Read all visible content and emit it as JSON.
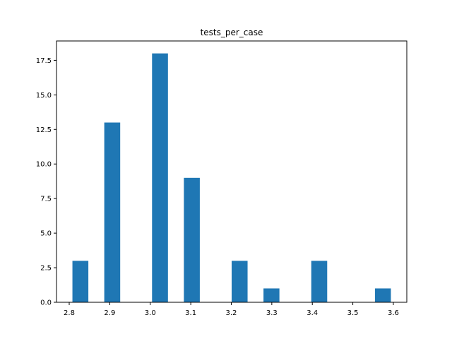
{
  "chart_data": {
    "type": "bar",
    "title": "tests_per_case",
    "xlabel": "",
    "ylabel": "",
    "bar_color": "#1f77b4",
    "xlim": [
      2.7686,
      3.6332
    ],
    "ylim": [
      0,
      18.9
    ],
    "x_ticks": [
      2.8,
      2.9,
      3.0,
      3.1,
      3.2,
      3.3,
      3.4,
      3.5,
      3.6
    ],
    "x_tick_labels": [
      "2.8",
      "2.9",
      "3.0",
      "3.1",
      "3.2",
      "3.3",
      "3.4",
      "3.5",
      "3.6"
    ],
    "y_ticks": [
      0,
      2.5,
      5,
      7.5,
      10,
      12.5,
      15,
      17.5
    ],
    "y_tick_labels": [
      "0.0",
      "2.5",
      "5.0",
      "7.5",
      "10.0",
      "12.5",
      "15.0",
      "17.5"
    ],
    "bins": [
      {
        "x0": 2.8079,
        "x1": 2.8472,
        "count": 3
      },
      {
        "x0": 2.8472,
        "x1": 2.8865,
        "count": 0
      },
      {
        "x0": 2.8865,
        "x1": 2.9258,
        "count": 13
      },
      {
        "x0": 2.9258,
        "x1": 2.9651,
        "count": 0
      },
      {
        "x0": 2.9651,
        "x1": 3.0044,
        "count": 0
      },
      {
        "x0": 3.0044,
        "x1": 3.0437,
        "count": 18
      },
      {
        "x0": 3.0437,
        "x1": 3.083,
        "count": 0
      },
      {
        "x0": 3.083,
        "x1": 3.1223,
        "count": 9
      },
      {
        "x0": 3.1223,
        "x1": 3.1616,
        "count": 0
      },
      {
        "x0": 3.1616,
        "x1": 3.2009,
        "count": 0
      },
      {
        "x0": 3.2009,
        "x1": 3.2402,
        "count": 3
      },
      {
        "x0": 3.2402,
        "x1": 3.2795,
        "count": 0
      },
      {
        "x0": 3.2795,
        "x1": 3.3188,
        "count": 1
      },
      {
        "x0": 3.3188,
        "x1": 3.3581,
        "count": 0
      },
      {
        "x0": 3.3581,
        "x1": 3.3974,
        "count": 0
      },
      {
        "x0": 3.3974,
        "x1": 3.4367,
        "count": 3
      },
      {
        "x0": 3.4367,
        "x1": 3.476,
        "count": 0
      },
      {
        "x0": 3.476,
        "x1": 3.5153,
        "count": 0
      },
      {
        "x0": 3.5153,
        "x1": 3.5546,
        "count": 0
      },
      {
        "x0": 3.5546,
        "x1": 3.5939,
        "count": 1
      }
    ],
    "grid": false,
    "legend": "none"
  }
}
